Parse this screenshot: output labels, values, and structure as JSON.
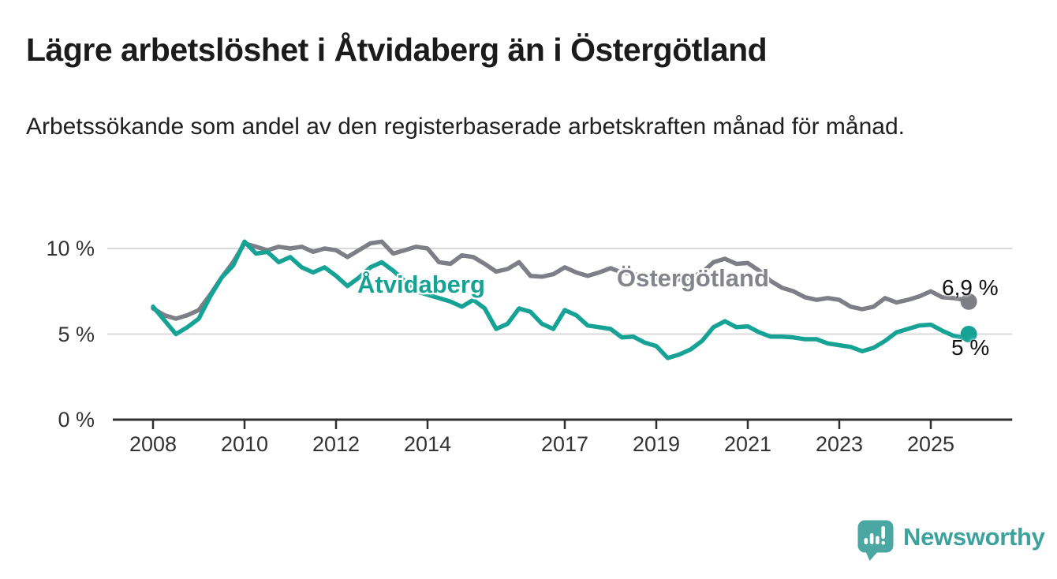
{
  "header": {
    "title": "Lägre arbetslöshet i Åtvidaberg än i Östergötland",
    "subtitle": "Arbetssökande som andel av den registerbaserade arbetskraften månad för månad."
  },
  "chart_data": {
    "type": "line",
    "title": "Lägre arbetslöshet i Åtvidaberg än i Östergötland",
    "xlabel": "",
    "ylabel": "",
    "x_unit": "decimal_year",
    "grid": "horizontal",
    "legend_position": "inline-labels",
    "xlim": [
      2007.0,
      2026.78
    ],
    "ylim": [
      0,
      11.7
    ],
    "xticks": [
      {
        "value": 2008,
        "label": "2008"
      },
      {
        "value": 2010,
        "label": "2010"
      },
      {
        "value": 2012,
        "label": "2012"
      },
      {
        "value": 2014,
        "label": "2014"
      },
      {
        "value": 2017,
        "label": "2017"
      },
      {
        "value": 2019,
        "label": "2019"
      },
      {
        "value": 2021,
        "label": "2021"
      },
      {
        "value": 2023,
        "label": "2023"
      },
      {
        "value": 2025,
        "label": "2025"
      }
    ],
    "yticks": [
      {
        "value": 0,
        "label": "0 %"
      },
      {
        "value": 5,
        "label": "5 %"
      },
      {
        "value": 10,
        "label": "10 %"
      }
    ],
    "x": [
      2008,
      2008.25,
      2008.5,
      2008.75,
      2009,
      2009.25,
      2009.5,
      2009.75,
      2010,
      2010.25,
      2010.5,
      2010.75,
      2011,
      2011.25,
      2011.5,
      2011.75,
      2012,
      2012.25,
      2012.5,
      2012.75,
      2013,
      2013.25,
      2013.5,
      2013.75,
      2014,
      2014.25,
      2014.5,
      2014.75,
      2015,
      2015.25,
      2015.5,
      2015.75,
      2016,
      2016.25,
      2016.5,
      2016.75,
      2017,
      2017.25,
      2017.5,
      2017.75,
      2018,
      2018.25,
      2018.5,
      2018.75,
      2019,
      2019.25,
      2019.5,
      2019.75,
      2020,
      2020.25,
      2020.5,
      2020.75,
      2021,
      2021.25,
      2021.5,
      2021.75,
      2022,
      2022.25,
      2022.5,
      2022.75,
      2023,
      2023.25,
      2023.5,
      2023.75,
      2024,
      2024.25,
      2024.5,
      2024.75,
      2025,
      2025.25,
      2025.5,
      2025.75,
      2025.83
    ],
    "series": [
      {
        "name": "Östergötland",
        "color": "#7e7e86",
        "end_label": "6,9 %",
        "end_value": 6.9,
        "values": [
          6.5,
          6.1,
          5.9,
          6.1,
          6.4,
          7.3,
          8.3,
          9.2,
          10.3,
          10.1,
          9.9,
          10.1,
          10.0,
          10.1,
          9.8,
          10.0,
          9.9,
          9.5,
          9.9,
          10.3,
          10.4,
          9.7,
          9.9,
          10.1,
          10.0,
          9.2,
          9.1,
          9.6,
          9.5,
          9.1,
          8.65,
          8.8,
          9.2,
          8.4,
          8.35,
          8.5,
          8.9,
          8.6,
          8.4,
          8.6,
          8.85,
          8.6,
          8.5,
          8.4,
          8.3,
          8.1,
          8.2,
          8.3,
          8.6,
          9.2,
          9.4,
          9.1,
          9.15,
          8.7,
          8.1,
          7.7,
          7.5,
          7.15,
          7.0,
          7.1,
          7.0,
          6.6,
          6.45,
          6.6,
          7.1,
          6.85,
          7.0,
          7.2,
          7.5,
          7.15,
          7.1,
          7.0,
          6.9
        ]
      },
      {
        "name": "Åtvidaberg",
        "color": "#16a396",
        "end_label": "5 %",
        "end_value": 5.0,
        "values": [
          6.6,
          5.8,
          5.0,
          5.4,
          5.9,
          7.2,
          8.3,
          9.0,
          10.4,
          9.7,
          9.8,
          9.2,
          9.5,
          8.9,
          8.6,
          8.9,
          8.4,
          7.8,
          8.3,
          8.9,
          9.2,
          8.7,
          8.1,
          7.5,
          7.3,
          7.1,
          6.9,
          6.6,
          7.0,
          6.5,
          5.3,
          5.6,
          6.5,
          6.3,
          5.6,
          5.3,
          6.4,
          6.1,
          5.5,
          5.4,
          5.3,
          4.8,
          4.85,
          4.5,
          4.3,
          3.6,
          3.8,
          4.1,
          4.6,
          5.4,
          5.75,
          5.4,
          5.45,
          5.1,
          4.85,
          4.85,
          4.8,
          4.7,
          4.7,
          4.45,
          4.35,
          4.25,
          4.0,
          4.2,
          4.6,
          5.1,
          5.3,
          5.5,
          5.55,
          5.2,
          4.9,
          4.75,
          5.0
        ]
      }
    ]
  },
  "footer": {
    "brand": "Newsworthy"
  },
  "icons": {
    "logo": "newsworthy-logo"
  },
  "colors": {
    "accent_teal": "#16a396",
    "series_gray": "#7e7e86",
    "gridline": "#d8d8d8",
    "axis": "#2f2f2f",
    "logo_teal": "#4ba7a2",
    "logo_text_teal": "#3da29e"
  }
}
